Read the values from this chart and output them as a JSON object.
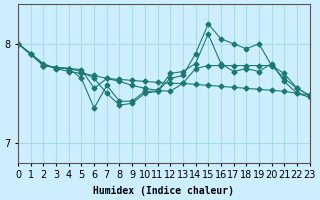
{
  "xlabel": "Humidex (Indice chaleur)",
  "bg_color": "#cceeff",
  "grid_color": "#aadddd",
  "line_color": "#1a7a6e",
  "xlim": [
    0,
    23
  ],
  "ylim": [
    6.8,
    8.4
  ],
  "yticks": [
    7,
    8
  ],
  "xticks": [
    0,
    1,
    2,
    3,
    4,
    5,
    6,
    7,
    8,
    9,
    10,
    11,
    12,
    13,
    14,
    15,
    16,
    17,
    18,
    19,
    20,
    21,
    22,
    23
  ],
  "series": [
    {
      "x": [
        0,
        1,
        2,
        3,
        4,
        5,
        6,
        7,
        8,
        9,
        10,
        11,
        12,
        13,
        14,
        15,
        16,
        17,
        18,
        19,
        20,
        21,
        22,
        23
      ],
      "y": [
        8.0,
        7.9,
        7.8,
        7.75,
        7.72,
        7.7,
        7.68,
        7.65,
        7.64,
        7.63,
        7.62,
        7.61,
        7.6,
        7.6,
        7.59,
        7.58,
        7.57,
        7.56,
        7.55,
        7.54,
        7.53,
        7.52,
        7.5,
        7.48
      ]
    },
    {
      "x": [
        0,
        1,
        2,
        3,
        4,
        5,
        6,
        7,
        8,
        9,
        10,
        11,
        12,
        13,
        14,
        15,
        16,
        17,
        18,
        19,
        20,
        21,
        22,
        23
      ],
      "y": [
        8.0,
        7.9,
        7.78,
        7.76,
        7.75,
        7.74,
        7.55,
        7.65,
        7.62,
        7.58,
        7.55,
        7.53,
        7.52,
        7.6,
        7.75,
        7.78,
        7.78,
        7.78,
        7.78,
        7.78,
        7.78,
        7.65,
        7.55,
        7.48
      ]
    },
    {
      "x": [
        0,
        1,
        2,
        3,
        4,
        5,
        6,
        7,
        8,
        9,
        10,
        11,
        12,
        13,
        14,
        15,
        16,
        17,
        18,
        19,
        20,
        21,
        22,
        23
      ],
      "y": [
        8.0,
        7.9,
        7.78,
        7.76,
        7.75,
        7.65,
        7.35,
        7.58,
        7.42,
        7.42,
        7.52,
        7.52,
        7.65,
        7.68,
        7.9,
        8.2,
        8.05,
        8.0,
        7.95,
        8.0,
        7.78,
        7.7,
        7.55,
        7.48
      ]
    },
    {
      "x": [
        0,
        2,
        3,
        4,
        5,
        6,
        7,
        8,
        9,
        10,
        11,
        12,
        13,
        14,
        15,
        16,
        17,
        18,
        19,
        20,
        21,
        22,
        23
      ],
      "y": [
        8.0,
        7.78,
        7.76,
        7.75,
        7.72,
        7.65,
        7.5,
        7.38,
        7.4,
        7.5,
        7.52,
        7.7,
        7.72,
        7.8,
        8.1,
        7.8,
        7.72,
        7.75,
        7.72,
        7.8,
        7.62,
        7.5,
        7.46
      ]
    }
  ]
}
